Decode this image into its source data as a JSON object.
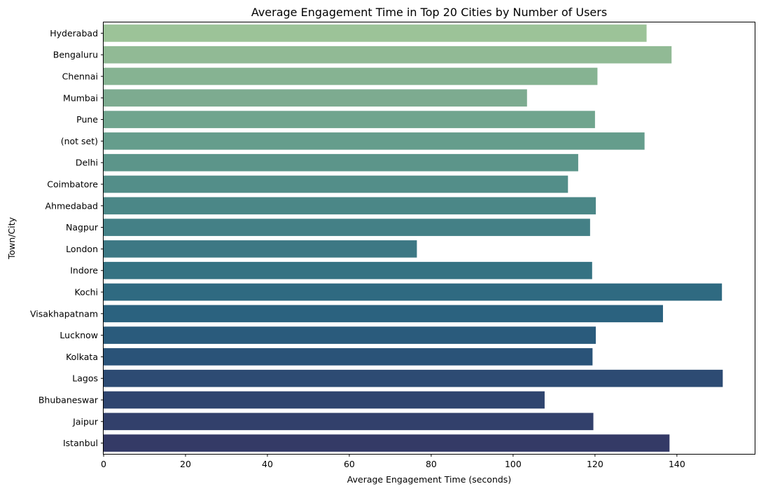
{
  "chart_data": {
    "type": "bar",
    "orientation": "horizontal",
    "title": "Average Engagement Time in Top 20 Cities by Number of Users",
    "xlabel": "Average Engagement Time (seconds)",
    "ylabel": "Town/City",
    "xlim": [
      0,
      159
    ],
    "xticks": [
      0,
      20,
      40,
      60,
      80,
      100,
      120,
      140
    ],
    "grid": false,
    "categories": [
      "Hyderabad",
      "Bengaluru",
      "Chennai",
      "Mumbai",
      "Pune",
      "(not set)",
      "Delhi",
      "Coimbatore",
      "Ahmedabad",
      "Nagpur",
      "London",
      "Indore",
      "Kochi",
      "Visakhapatnam",
      "Lucknow",
      "Kolkata",
      "Lagos",
      "Bhubaneswar",
      "Jaipur",
      "Istanbul"
    ],
    "values": [
      132.6,
      138.7,
      120.6,
      103.4,
      120.0,
      132.1,
      115.9,
      113.4,
      120.2,
      118.8,
      76.5,
      119.3,
      151.0,
      136.6,
      120.2,
      119.4,
      151.2,
      107.7,
      119.6,
      138.2
    ],
    "colors": [
      "#9cc398",
      "#91ba95",
      "#86b392",
      "#7dab90",
      "#70a58e",
      "#659d8c",
      "#5c958a",
      "#538e89",
      "#4b8787",
      "#448086",
      "#3d7884",
      "#357282",
      "#2f6a81",
      "#2b627f",
      "#2a5b7c",
      "#2a5378",
      "#2d4b73",
      "#2f456f",
      "#32406b",
      "#343a66"
    ]
  }
}
